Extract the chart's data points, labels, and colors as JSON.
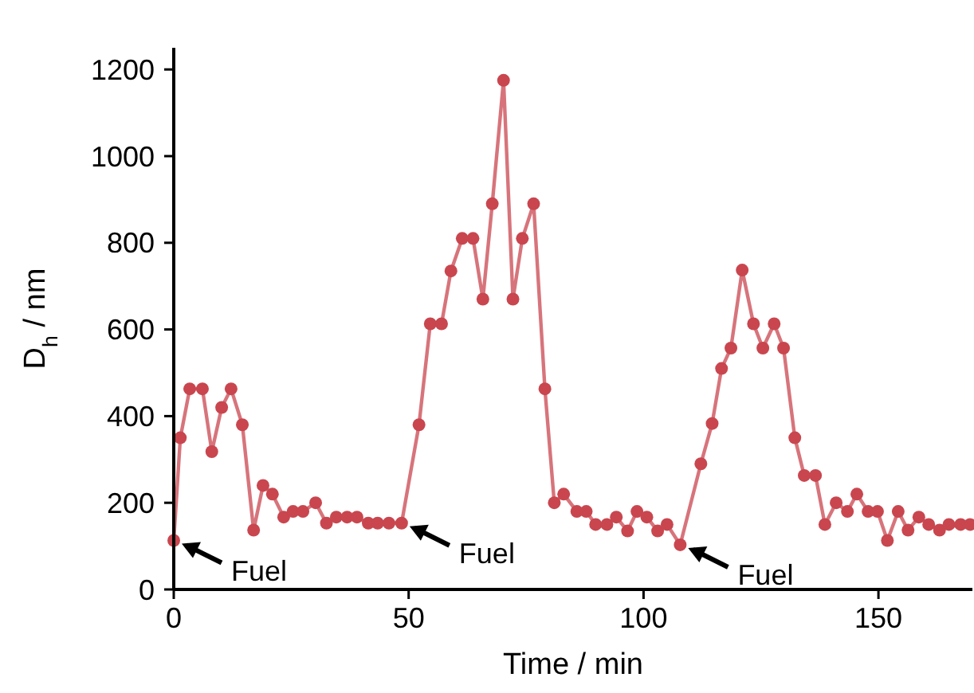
{
  "chart_data": {
    "type": "line",
    "xlabel": "Time / min",
    "ylabel": "D$_{h}$ / nm",
    "xlim": [
      0,
      170
    ],
    "ylim": [
      0,
      1250
    ],
    "xticks": [
      0,
      50,
      100,
      150
    ],
    "yticks": [
      0,
      200,
      400,
      600,
      800,
      1000,
      1200
    ],
    "marker": "circle",
    "line_style": "solid",
    "grid": false,
    "series": [
      {
        "color": "#c9464f",
        "x": [
          0,
          1.4,
          3.4,
          6.1,
          8.1,
          10.2,
          12.2,
          14.6,
          17,
          19,
          21,
          23.4,
          25.4,
          27.5,
          30.2,
          32.5,
          34.6,
          36.9,
          39,
          41.4,
          43.4,
          45.8,
          48.5,
          52.2,
          54.6,
          57,
          59,
          61.4,
          63.7,
          65.8,
          67.8,
          70.2,
          72.2,
          74.2,
          76.6,
          79,
          81,
          83,
          85.8,
          87.8,
          89.8,
          92.2,
          94.2,
          96.6,
          98.6,
          100.7,
          103,
          105,
          107.8,
          112.2,
          114.6,
          116.6,
          118.6,
          121,
          123.4,
          125.4,
          127.8,
          129.8,
          132.2,
          134.2,
          136.6,
          138.6,
          141,
          143.4,
          145.4,
          147.8,
          149.8,
          151.9,
          154.2,
          156.3,
          158.6,
          160.7,
          163,
          165,
          167.5,
          169.5
        ],
        "values": [
          113,
          350,
          463,
          463,
          318,
          420,
          463,
          380,
          137,
          240,
          220,
          167,
          180,
          180,
          200,
          153,
          167,
          167,
          167,
          153,
          153,
          153,
          153,
          380,
          613,
          613,
          735,
          810,
          810,
          670,
          890,
          1175,
          670,
          810,
          890,
          463,
          200,
          220,
          180,
          180,
          150,
          150,
          167,
          135,
          180,
          167,
          135,
          150,
          103,
          290,
          383,
          510,
          557,
          737,
          613,
          557,
          613,
          557,
          350,
          263,
          263,
          150,
          200,
          180,
          220,
          180,
          180,
          113,
          180,
          137,
          167,
          150,
          137,
          150,
          150,
          150
        ]
      }
    ],
    "annotations": [
      {
        "text": "Fuel",
        "x": 0,
        "y": 113
      },
      {
        "text": "Fuel",
        "x": 48.5,
        "y": 153
      },
      {
        "text": "Fuel",
        "x": 107.8,
        "y": 103
      }
    ]
  }
}
